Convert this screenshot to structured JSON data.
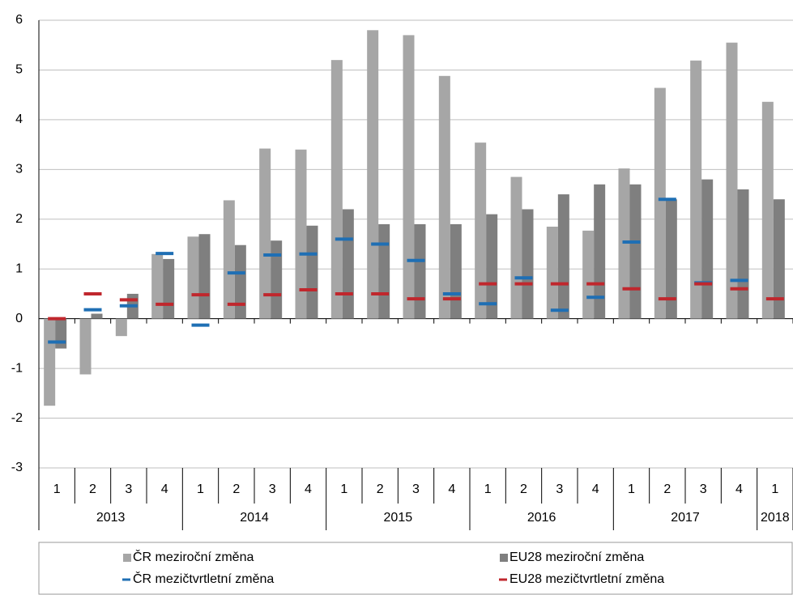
{
  "chart_data": {
    "type": "bar",
    "categories": [
      "1",
      "2",
      "3",
      "4",
      "1",
      "2",
      "3",
      "4",
      "1",
      "2",
      "3",
      "4",
      "1",
      "2",
      "3",
      "4",
      "1",
      "2",
      "3",
      "4",
      "1"
    ],
    "years": [
      "2013",
      null,
      null,
      null,
      "2014",
      null,
      null,
      null,
      "2015",
      null,
      null,
      null,
      "2016",
      null,
      null,
      null,
      "2017",
      null,
      null,
      null,
      "2018"
    ],
    "series": [
      {
        "name": "ČR meziroční změna",
        "color": "#a6a6a6",
        "marker": "bar",
        "values": [
          -1.75,
          -1.12,
          -0.35,
          1.3,
          1.65,
          2.38,
          3.42,
          3.4,
          5.2,
          5.8,
          5.7,
          4.88,
          3.54,
          2.85,
          1.85,
          1.77,
          3.02,
          4.64,
          5.19,
          5.55,
          4.36
        ]
      },
      {
        "name": "EU28 meziroční změna",
        "color": "#7f7f7f",
        "marker": "bar",
        "values": [
          -0.6,
          0.1,
          0.5,
          1.2,
          1.7,
          1.48,
          1.57,
          1.87,
          2.2,
          1.9,
          1.9,
          1.9,
          2.1,
          2.2,
          2.5,
          2.7,
          2.7,
          2.4,
          2.8,
          2.6,
          2.4
        ]
      },
      {
        "name": "ČR mezičtvrtletní změna",
        "color": "#1f6fb4",
        "marker": "dash",
        "values": [
          -0.47,
          0.18,
          0.26,
          1.31,
          -0.13,
          0.92,
          1.28,
          1.3,
          1.6,
          1.5,
          1.17,
          0.5,
          0.3,
          0.82,
          0.17,
          0.43,
          1.54,
          2.4,
          0.72,
          0.77,
          null
        ]
      },
      {
        "name": "EU28 mezičtvrtletní změna",
        "color": "#c0272d",
        "marker": "dash",
        "values": [
          0.0,
          0.5,
          0.38,
          0.29,
          0.48,
          0.29,
          0.48,
          0.58,
          0.5,
          0.5,
          0.4,
          0.4,
          0.7,
          0.7,
          0.7,
          0.7,
          0.6,
          0.4,
          0.7,
          0.6,
          0.4
        ]
      }
    ],
    "ylim": [
      -3,
      6
    ],
    "yticks": [
      -3,
      -2,
      -1,
      0,
      1,
      2,
      3,
      4,
      5,
      6
    ],
    "grid": true
  }
}
